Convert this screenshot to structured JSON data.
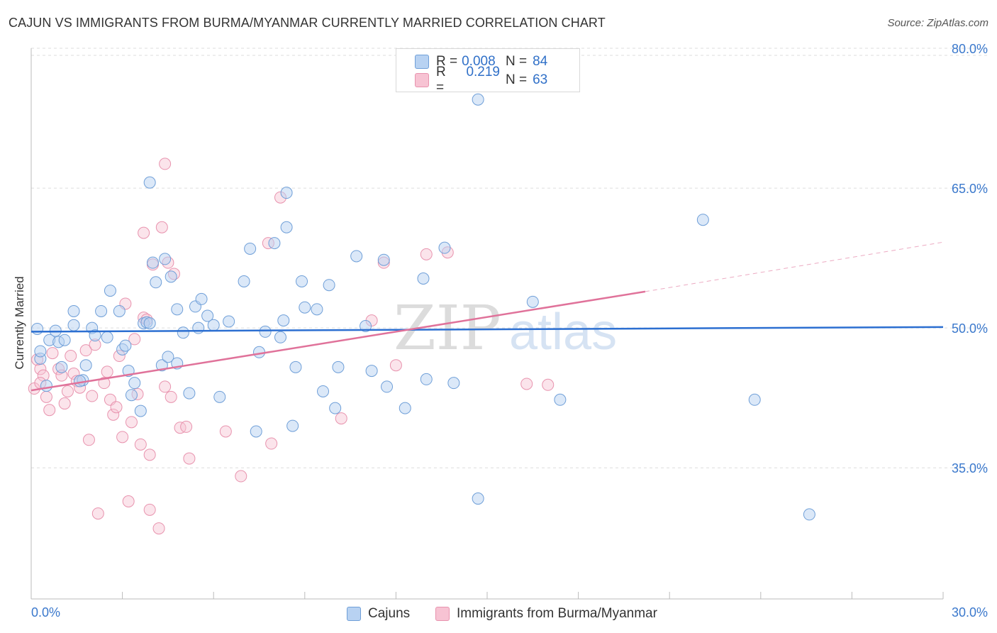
{
  "title": "CAJUN VS IMMIGRANTS FROM BURMA/MYANMAR CURRENTLY MARRIED CORRELATION CHART",
  "source": "Source: ZipAtlas.com",
  "watermark": {
    "zip": "ZIP",
    "atlas": "atlas"
  },
  "legend": {
    "rows": [
      {
        "r_label": "R =",
        "r_value": "0.008",
        "n_label": "N =",
        "n_value": "84"
      },
      {
        "r_label": "R =",
        "r_value": "0.219",
        "n_label": "N =",
        "n_value": "63"
      }
    ]
  },
  "bottom_legend": [
    "Cajuns",
    "Immigrants from Burma/Myanmar"
  ],
  "colors": {
    "blue_fill": "#b8d2f2",
    "blue_stroke": "#6f9fd8",
    "blue_line": "#2c6fd1",
    "pink_fill": "#f7c3d3",
    "pink_stroke": "#e893ae",
    "pink_line": "#e0729a",
    "tick_label": "#3a78cc",
    "grid": "#dddddd"
  },
  "chart_data": {
    "type": "scatter",
    "ylabel": "Currently Married",
    "xlim": [
      0,
      30
    ],
    "ylim": [
      22,
      80
    ],
    "x_tick_labels": [
      "0.0%",
      "30.0%"
    ],
    "y_ticks": [
      35,
      50,
      65,
      80
    ],
    "y_tick_labels": [
      "35.0%",
      "50.0%",
      "65.0%",
      "80.0%"
    ],
    "grid": "horizontal dashed",
    "series": [
      {
        "name": "Cajuns",
        "points": [
          [
            0.2,
            49.9
          ],
          [
            0.3,
            46.7
          ],
          [
            0.5,
            43.8
          ],
          [
            0.6,
            48.7
          ],
          [
            0.8,
            49.7
          ],
          [
            0.9,
            48.5
          ],
          [
            1.0,
            45.8
          ],
          [
            1.1,
            48.7
          ],
          [
            1.4,
            51.8
          ],
          [
            1.4,
            50.3
          ],
          [
            1.7,
            44.4
          ],
          [
            1.8,
            46.0
          ],
          [
            2.0,
            50.0
          ],
          [
            2.1,
            49.2
          ],
          [
            2.3,
            51.8
          ],
          [
            2.5,
            49.0
          ],
          [
            2.6,
            54.0
          ],
          [
            2.9,
            51.8
          ],
          [
            3.0,
            47.7
          ],
          [
            3.1,
            48.1
          ],
          [
            3.2,
            45.4
          ],
          [
            3.3,
            42.8
          ],
          [
            3.4,
            44.1
          ],
          [
            3.6,
            41.1
          ],
          [
            3.7,
            50.5
          ],
          [
            3.8,
            50.6
          ],
          [
            3.9,
            65.6
          ],
          [
            4.0,
            57.0
          ],
          [
            4.1,
            54.9
          ],
          [
            4.3,
            46.0
          ],
          [
            4.4,
            57.4
          ],
          [
            4.5,
            46.9
          ],
          [
            4.6,
            55.5
          ],
          [
            4.8,
            46.2
          ],
          [
            5.0,
            49.5
          ],
          [
            5.2,
            43.0
          ],
          [
            5.4,
            52.3
          ],
          [
            5.5,
            50.0
          ],
          [
            5.6,
            53.1
          ],
          [
            5.8,
            51.3
          ],
          [
            6.0,
            50.3
          ],
          [
            6.2,
            42.6
          ],
          [
            6.5,
            50.7
          ],
          [
            7.0,
            55.0
          ],
          [
            7.2,
            58.5
          ],
          [
            7.4,
            38.9
          ],
          [
            7.5,
            47.4
          ],
          [
            7.7,
            49.6
          ],
          [
            8.0,
            59.1
          ],
          [
            8.2,
            49.0
          ],
          [
            8.3,
            50.8
          ],
          [
            8.4,
            60.8
          ],
          [
            8.4,
            64.5
          ],
          [
            8.6,
            39.5
          ],
          [
            8.7,
            45.8
          ],
          [
            8.9,
            55.0
          ],
          [
            9.0,
            52.2
          ],
          [
            9.4,
            52.0
          ],
          [
            9.6,
            43.2
          ],
          [
            9.8,
            54.6
          ],
          [
            10.0,
            41.4
          ],
          [
            10.1,
            45.8
          ],
          [
            10.7,
            57.7
          ],
          [
            11.0,
            50.2
          ],
          [
            11.2,
            45.4
          ],
          [
            11.6,
            57.3
          ],
          [
            11.7,
            43.7
          ],
          [
            12.3,
            41.4
          ],
          [
            12.9,
            76.1
          ],
          [
            12.9,
            55.3
          ],
          [
            13.0,
            44.5
          ],
          [
            13.6,
            58.6
          ],
          [
            13.9,
            44.1
          ],
          [
            14.7,
            74.5
          ],
          [
            14.7,
            31.7
          ],
          [
            16.5,
            52.8
          ],
          [
            17.4,
            42.3
          ],
          [
            22.1,
            61.6
          ],
          [
            23.8,
            42.3
          ],
          [
            25.6,
            30.0
          ],
          [
            0.3,
            47.5
          ],
          [
            1.6,
            44.3
          ],
          [
            3.9,
            50.5
          ],
          [
            4.8,
            52.0
          ]
        ]
      },
      {
        "name": "Immigrants from Burma/Myanmar",
        "points": [
          [
            0.1,
            43.5
          ],
          [
            0.2,
            46.6
          ],
          [
            0.3,
            45.6
          ],
          [
            0.4,
            44.9
          ],
          [
            0.5,
            42.6
          ],
          [
            0.6,
            41.2
          ],
          [
            0.7,
            47.3
          ],
          [
            0.9,
            45.6
          ],
          [
            1.0,
            44.9
          ],
          [
            1.1,
            41.9
          ],
          [
            1.2,
            43.2
          ],
          [
            1.3,
            47.0
          ],
          [
            1.4,
            45.1
          ],
          [
            1.5,
            44.3
          ],
          [
            1.6,
            43.6
          ],
          [
            1.8,
            47.6
          ],
          [
            1.9,
            38.0
          ],
          [
            2.0,
            42.7
          ],
          [
            2.1,
            48.2
          ],
          [
            2.2,
            30.1
          ],
          [
            2.4,
            44.1
          ],
          [
            2.5,
            45.3
          ],
          [
            2.6,
            42.3
          ],
          [
            2.7,
            40.7
          ],
          [
            2.8,
            41.5
          ],
          [
            2.9,
            47.0
          ],
          [
            3.0,
            38.3
          ],
          [
            3.1,
            52.6
          ],
          [
            3.2,
            31.4
          ],
          [
            3.3,
            39.9
          ],
          [
            3.4,
            48.8
          ],
          [
            3.5,
            42.9
          ],
          [
            3.6,
            37.5
          ],
          [
            3.7,
            51.1
          ],
          [
            3.8,
            50.9
          ],
          [
            3.9,
            36.4
          ],
          [
            3.9,
            30.5
          ],
          [
            4.0,
            56.8
          ],
          [
            4.2,
            28.5
          ],
          [
            4.3,
            60.8
          ],
          [
            4.4,
            43.7
          ],
          [
            4.5,
            57.0
          ],
          [
            4.6,
            42.6
          ],
          [
            4.7,
            55.8
          ],
          [
            4.9,
            39.3
          ],
          [
            5.1,
            39.4
          ],
          [
            5.2,
            36.0
          ],
          [
            4.4,
            67.6
          ],
          [
            3.7,
            60.2
          ],
          [
            6.4,
            38.9
          ],
          [
            6.9,
            34.1
          ],
          [
            7.8,
            59.1
          ],
          [
            7.9,
            37.6
          ],
          [
            8.2,
            64.0
          ],
          [
            10.2,
            40.3
          ],
          [
            11.2,
            50.8
          ],
          [
            11.6,
            57.0
          ],
          [
            12.0,
            46.0
          ],
          [
            13.0,
            57.9
          ],
          [
            13.7,
            58.1
          ],
          [
            16.3,
            44.0
          ],
          [
            17.0,
            43.9
          ],
          [
            0.3,
            44.1
          ]
        ]
      }
    ],
    "trend_lines": [
      {
        "series": "Cajuns",
        "x": [
          0,
          30
        ],
        "y": [
          49.6,
          50.1
        ]
      },
      {
        "series": "Immigrants from Burma/Myanmar",
        "x": [
          0,
          20.2
        ],
        "y": [
          43.3,
          53.9
        ],
        "dashed_extension": {
          "x": [
            20.2,
            30
          ],
          "y": [
            53.9,
            59.2
          ]
        }
      }
    ]
  }
}
